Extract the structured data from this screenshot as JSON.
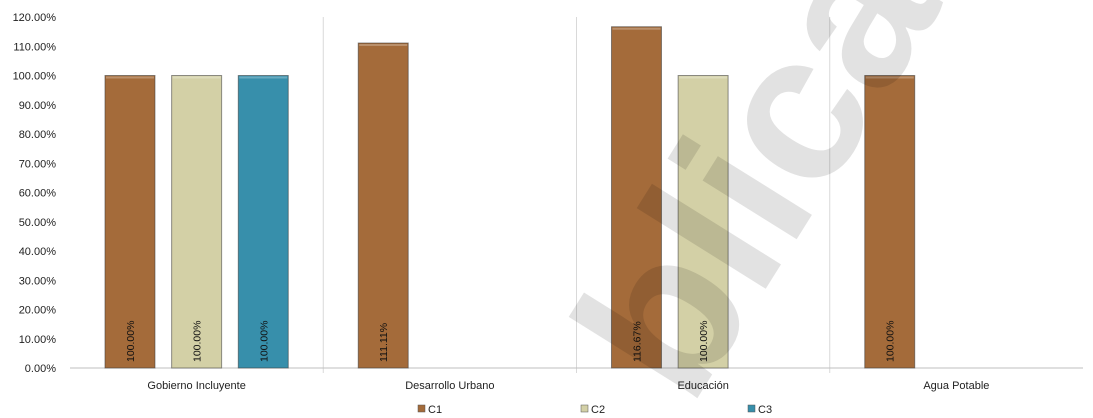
{
  "chart_data": {
    "type": "bar",
    "title": "",
    "xlabel": "",
    "ylabel": "",
    "ylim": [
      0,
      120
    ],
    "ytick_step": 10,
    "ytick_labels": [
      "0.00%",
      "10.00%",
      "20.00%",
      "30.00%",
      "40.00%",
      "50.00%",
      "60.00%",
      "70.00%",
      "80.00%",
      "90.00%",
      "100.00%",
      "110.00%",
      "120.00%"
    ],
    "grid": false,
    "legend_position": "bottom",
    "categories": [
      "Gobierno Incluyente",
      "Desarrollo Urbano",
      "Educación",
      "Agua Potable"
    ],
    "series": [
      {
        "name": "C1",
        "color": "#A46B3A",
        "values": [
          100.0,
          111.11,
          116.67,
          100.0
        ],
        "labels": [
          "100.00%",
          "111.11%",
          "116.67%",
          "100.00%"
        ]
      },
      {
        "name": "C2",
        "color": "#D3D0A6",
        "values": [
          100.0,
          null,
          100.0,
          null
        ],
        "labels": [
          "100.00%",
          null,
          "100.00%",
          null
        ]
      },
      {
        "name": "C3",
        "color": "#378FAB",
        "values": [
          100.0,
          null,
          null,
          null
        ],
        "labels": [
          "100.00%",
          null,
          null,
          null
        ]
      }
    ]
  },
  "watermark": {
    "text": "blica"
  }
}
